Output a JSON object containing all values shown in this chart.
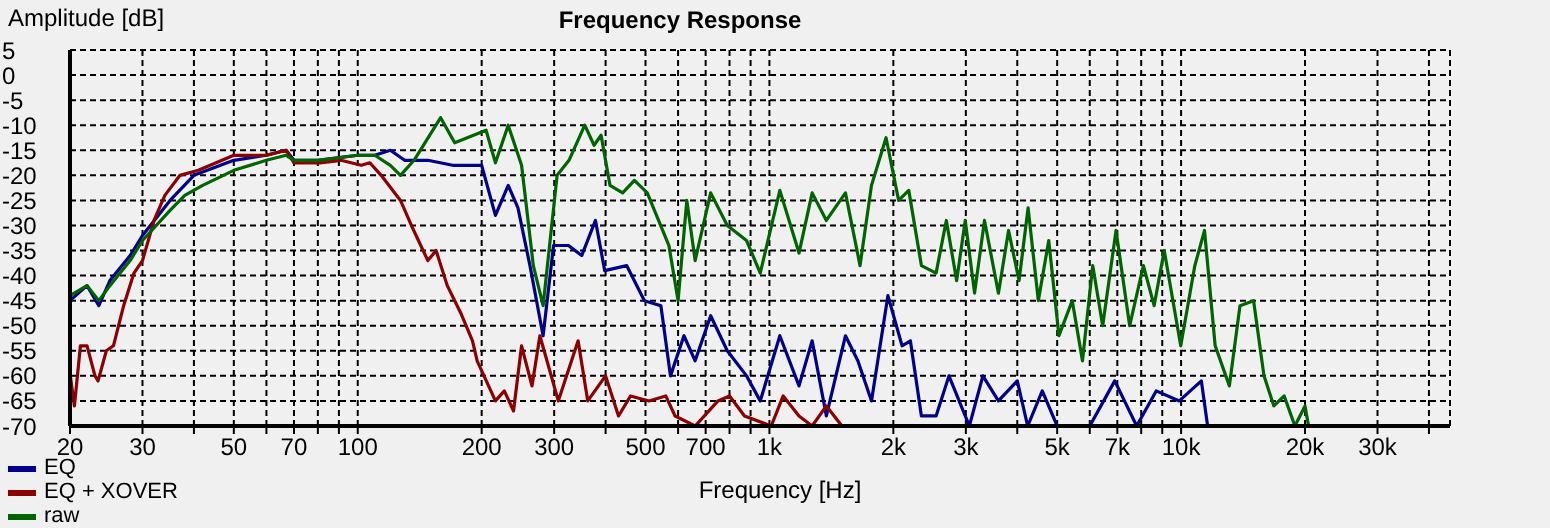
{
  "chart_data": {
    "type": "line",
    "title": "Frequency Response",
    "xlabel": "Frequency [Hz]",
    "ylabel": "Amplitude [dB]",
    "log": "x",
    "grid": true,
    "legend": "bottom left",
    "xlim": [
      20,
      45000
    ],
    "ylim": [
      -70,
      5
    ],
    "xticks": [
      20,
      30,
      {
        "value": 40,
        "label": null
      },
      50,
      {
        "value": 60,
        "label": null
      },
      70,
      {
        "value": 80,
        "label": null
      },
      {
        "value": 90,
        "label": null
      },
      100,
      200,
      300,
      {
        "value": 400,
        "label": null
      },
      500,
      {
        "value": 600,
        "label": null
      },
      700,
      {
        "value": 800,
        "label": null
      },
      {
        "value": 900,
        "label": null
      },
      {
        "value": 1000,
        "label": "1k"
      },
      {
        "value": 2000,
        "label": "2k"
      },
      {
        "value": 3000,
        "label": "3k"
      },
      {
        "value": 4000,
        "label": null
      },
      {
        "value": 5000,
        "label": "5k"
      },
      {
        "value": 6000,
        "label": null
      },
      {
        "value": 7000,
        "label": "7k"
      },
      {
        "value": 8000,
        "label": null
      },
      {
        "value": 9000,
        "label": null
      },
      {
        "value": 10000,
        "label": "10k"
      },
      {
        "value": 20000,
        "label": "20k"
      },
      {
        "value": 30000,
        "label": "30k"
      },
      {
        "value": 40000,
        "label": null
      }
    ],
    "yticks": [
      5,
      0,
      -5,
      -10,
      -15,
      -20,
      -25,
      -30,
      -35,
      -40,
      -45,
      -50,
      -55,
      -60,
      -65,
      -70
    ],
    "series": [
      {
        "name": "EQ",
        "color": "#00008b",
        "x": [
          20,
          22,
          23.5,
          25,
          28,
          30,
          35,
          40,
          50,
          60,
          67,
          70,
          80,
          100,
          110,
          120,
          130,
          148,
          170,
          200,
          216,
          232,
          245,
          262,
          282,
          299,
          325,
          350,
          378,
          398,
          450,
          497,
          545,
          575,
          620,
          660,
          720,
          790,
          880,
          950,
          1060,
          1180,
          1270,
          1375,
          1530,
          1640,
          1770,
          1940,
          2100,
          2200,
          2340,
          2540,
          2730,
          3060,
          3300,
          3600,
          4000,
          4240,
          4600,
          5000,
          6000,
          6900,
          7800,
          8700,
          9900,
          11200,
          11600
        ],
        "values": [
          -45,
          -42,
          -46,
          -41,
          -36,
          -32,
          -25,
          -20,
          -17,
          -16,
          -15,
          -17,
          -17,
          -16,
          -16,
          -15,
          -17,
          -17,
          -18,
          -18,
          -28,
          -22,
          -26.5,
          -38,
          -52,
          -34,
          -34,
          -36,
          -29,
          -39,
          -38,
          -45,
          -46,
          -60,
          -52,
          -57,
          -48,
          -55,
          -60,
          -65,
          -52,
          -62,
          -53,
          -68,
          -52,
          -57,
          -65,
          -44,
          -54,
          -53,
          -68,
          -68,
          -60,
          -70,
          -60,
          -65,
          -61,
          -70,
          -63,
          -70,
          -70,
          -61,
          -70,
          -63,
          -65,
          -61,
          -70
        ]
      },
      {
        "name": "EQ + XOVER",
        "color": "#8b0000",
        "x": [
          20,
          20.5,
          21.2,
          22,
          23,
          23.4,
          24.5,
          25.5,
          27,
          28.6,
          30,
          32,
          34,
          37,
          41,
          50,
          60,
          67,
          70,
          81,
          91,
          102,
          107,
          114,
          127,
          135,
          148,
          155,
          165,
          178,
          190,
          195,
          216,
          227,
          239,
          250,
          265,
          277,
          307,
          343,
          362,
          400,
          430,
          460,
          510,
          560,
          590,
          660,
          750,
          800,
          870,
          1010,
          1080,
          1180,
          1270,
          1375,
          1500
        ],
        "values": [
          -59.5,
          -66,
          -54,
          -54,
          -60,
          -61,
          -55,
          -54,
          -46,
          -39.5,
          -37,
          -29,
          -24,
          -20,
          -19,
          -16,
          -16,
          -15,
          -17.5,
          -17.5,
          -17,
          -18,
          -17.5,
          -20,
          -25,
          -30,
          -37,
          -35,
          -42,
          -47.5,
          -53,
          -57,
          -65,
          -63,
          -67,
          -54,
          -62,
          -52,
          -65,
          -53,
          -65,
          -60,
          -68,
          -64,
          -65,
          -64,
          -68,
          -70,
          -65,
          -64,
          -68,
          -70,
          -64,
          -68,
          -70,
          -66,
          -70
        ]
      },
      {
        "name": "raw",
        "color": "#006400",
        "x": [
          20,
          22,
          23.5,
          25,
          28,
          30,
          35,
          38,
          42,
          50,
          60,
          67,
          70,
          80,
          100,
          110,
          120,
          127,
          137,
          159,
          172,
          205,
          216,
          232,
          250,
          267,
          282,
          305,
          326,
          356,
          375,
          390,
          410,
          440,
          470,
          505,
          570,
          600,
          630,
          660,
          720,
          790,
          880,
          950,
          1060,
          1180,
          1270,
          1375,
          1530,
          1660,
          1770,
          1920,
          2060,
          2180,
          2340,
          2540,
          2690,
          2850,
          2990,
          3150,
          3330,
          3600,
          3810,
          4040,
          4250,
          4500,
          4770,
          5050,
          5440,
          5760,
          6100,
          6450,
          6950,
          7500,
          8100,
          8600,
          9100,
          9980,
          10800,
          11400,
          12100,
          13100,
          13900,
          15000,
          15900,
          16800,
          17800,
          18900,
          20000,
          20400
        ],
        "values": [
          -44,
          -42,
          -45,
          -42,
          -37,
          -33,
          -27,
          -24,
          -22,
          -19,
          -17,
          -16,
          -17,
          -17,
          -16,
          -16,
          -18,
          -20,
          -17,
          -8.5,
          -13.5,
          -11,
          -17.5,
          -10,
          -18,
          -38,
          -46,
          -20,
          -17,
          -10,
          -14,
          -12,
          -22,
          -23.5,
          -21,
          -23.5,
          -34,
          -45,
          -25,
          -37,
          -23.5,
          -30,
          -33,
          -39.5,
          -23,
          -35.5,
          -23.5,
          -29,
          -23.5,
          -38,
          -22,
          -12.5,
          -25,
          -23,
          -38,
          -39.5,
          -29,
          -41,
          -29,
          -43.5,
          -29,
          -43.5,
          -31,
          -41,
          -26.5,
          -45,
          -33,
          -52,
          -45,
          -57,
          -38,
          -50,
          -31,
          -50,
          -38,
          -46,
          -35,
          -54,
          -38,
          -31,
          -54,
          -62,
          -46,
          -45,
          -60,
          -66,
          -64,
          -70,
          -66,
          -70
        ]
      }
    ]
  }
}
